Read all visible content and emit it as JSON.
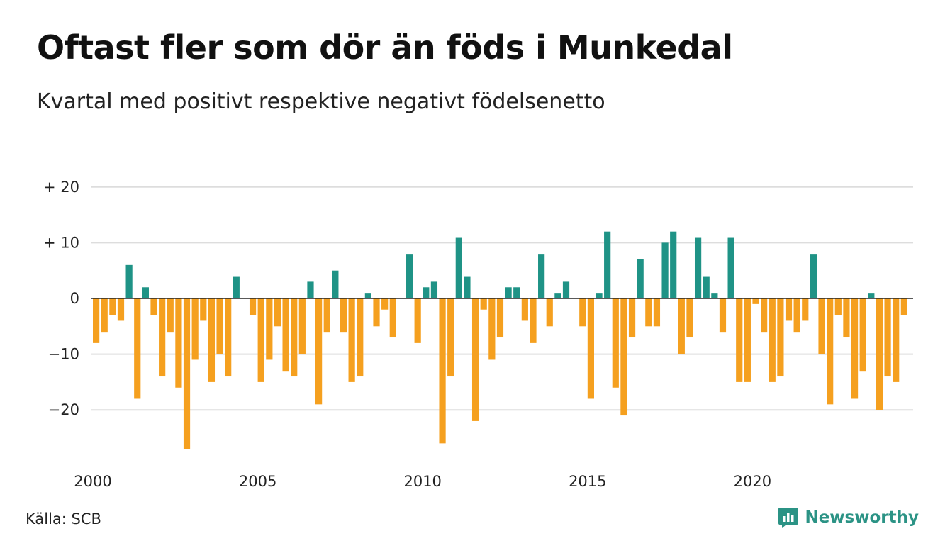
{
  "title": "Oftast fler som dör än föds i Munkedal",
  "subtitle": "Kvartal med positivt respektive negativt födelsenetto",
  "source": "Källa: SCB",
  "brand": "Newsworthy",
  "colors": {
    "positive": "#1f9386",
    "negative": "#f5a01f",
    "grid": "#dddddd",
    "axis": "#222222",
    "brand": "#2b9385"
  },
  "chart_data": {
    "type": "bar",
    "title": "Oftast fler som dör än föds i Munkedal",
    "subtitle": "Kvartal med positivt respektive negativt födelsenetto",
    "xlabel": "",
    "ylabel": "",
    "x_start": "2000 Q1",
    "x_tick_labels": [
      "2000",
      "2005",
      "2010",
      "2015",
      "2020"
    ],
    "y_ticks": [
      20,
      10,
      0,
      -10,
      -20
    ],
    "y_tick_labels": [
      "+ 20",
      "+ 10",
      "0",
      "−10",
      "−20"
    ],
    "ylim": [
      -28,
      20
    ],
    "grid": true,
    "values": [
      -8,
      -6,
      -3,
      -4,
      6,
      -18,
      2,
      -3,
      -14,
      -6,
      -16,
      -27,
      -11,
      -4,
      -15,
      -10,
      -14,
      4,
      0,
      -3,
      -15,
      -11,
      -5,
      -13,
      -14,
      -10,
      3,
      -19,
      -6,
      5,
      -6,
      -15,
      -14,
      1,
      -5,
      -2,
      -7,
      0,
      8,
      -8,
      2,
      3,
      -26,
      -14,
      11,
      4,
      -22,
      -2,
      -11,
      -7,
      2,
      2,
      -4,
      -8,
      8,
      -5,
      1,
      3,
      0,
      -5,
      -18,
      1,
      12,
      -16,
      -21,
      -7,
      7,
      -5,
      -5,
      10,
      12,
      -10,
      -7,
      11,
      4,
      1,
      -6,
      11,
      -15,
      -15,
      -1,
      -6,
      -15,
      -14,
      -4,
      -6,
      -4,
      8,
      -10,
      -19,
      -3,
      -7,
      -18,
      -13,
      1,
      -20,
      -14,
      -15,
      -3
    ]
  }
}
